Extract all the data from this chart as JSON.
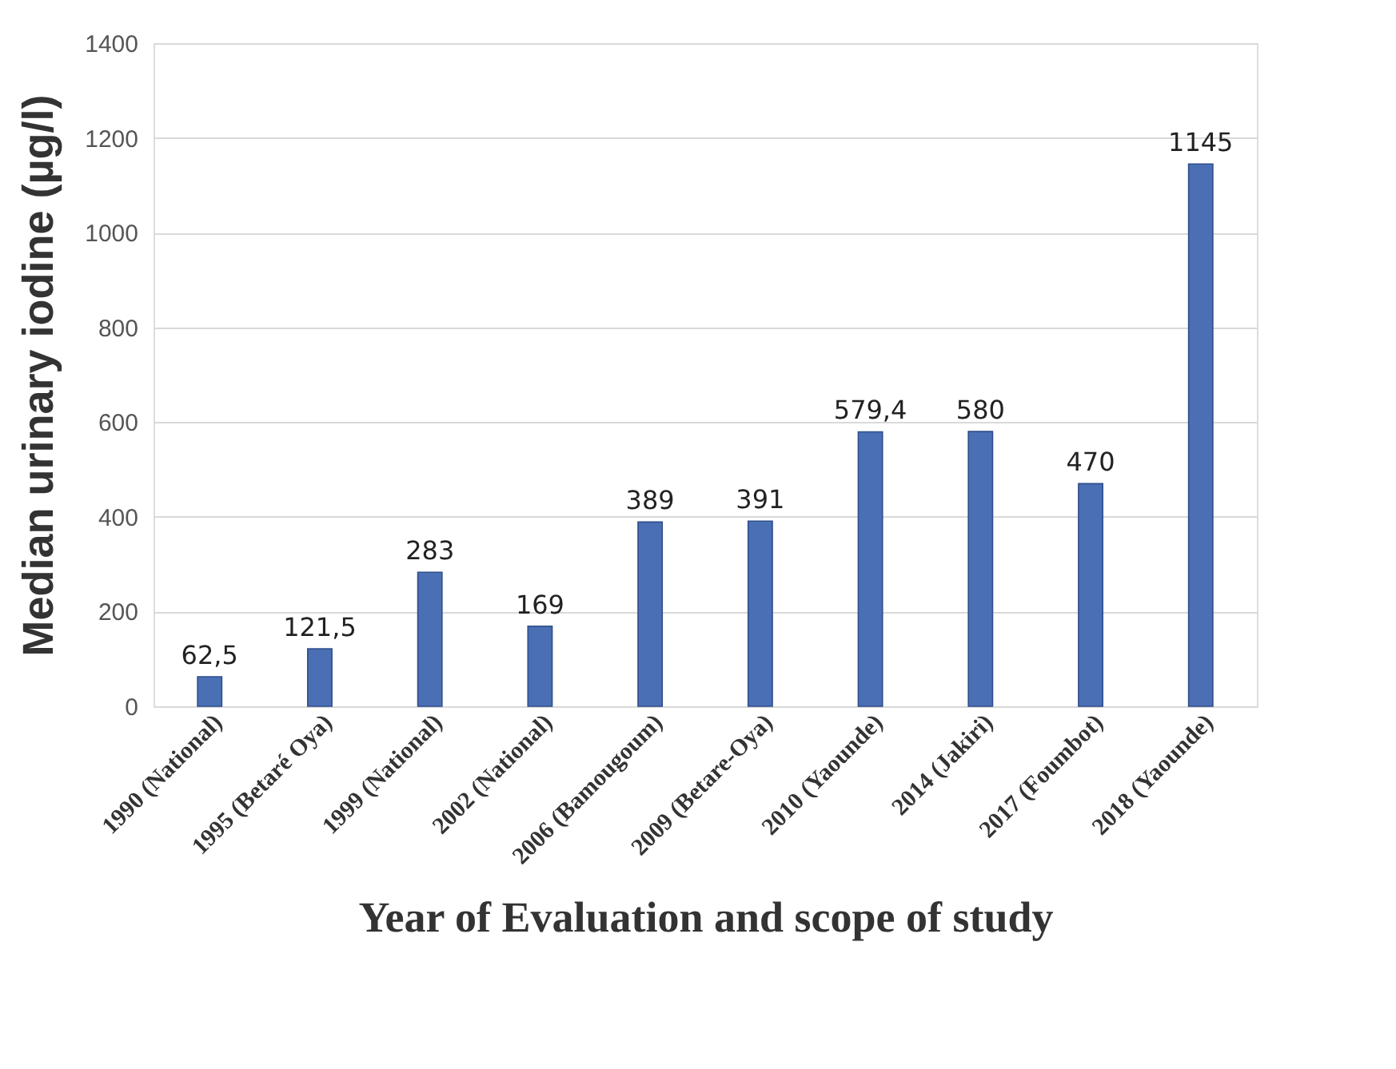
{
  "chart_data": {
    "type": "bar",
    "xlabel": "Year of Evaluation and scope of study",
    "ylabel": "Median urinary iodine (µg/l)",
    "categories": [
      "1990 (National)",
      "1995 (Betaré Oya)",
      "1999 (National)",
      "2002 (National)",
      "2006 (Bamougoum)",
      "2009 (Betare-Oya)",
      "2010 (Yaounde)",
      "2014 (Jakiri)",
      "2017 (Foumbot)",
      "2018 (Yaounde)"
    ],
    "values": [
      62.5,
      121.5,
      283,
      169,
      389,
      391,
      579.4,
      580,
      470,
      1145
    ],
    "value_labels": [
      "62,5",
      "121,5",
      "283",
      "169",
      "389",
      "391",
      "579,4",
      "580",
      "470",
      "1145"
    ],
    "color": "#4a6fb5",
    "ylim": [
      0,
      1400
    ],
    "yticks": [
      0,
      200,
      400,
      600,
      800,
      1000,
      1200,
      1400
    ],
    "grid": "y"
  }
}
